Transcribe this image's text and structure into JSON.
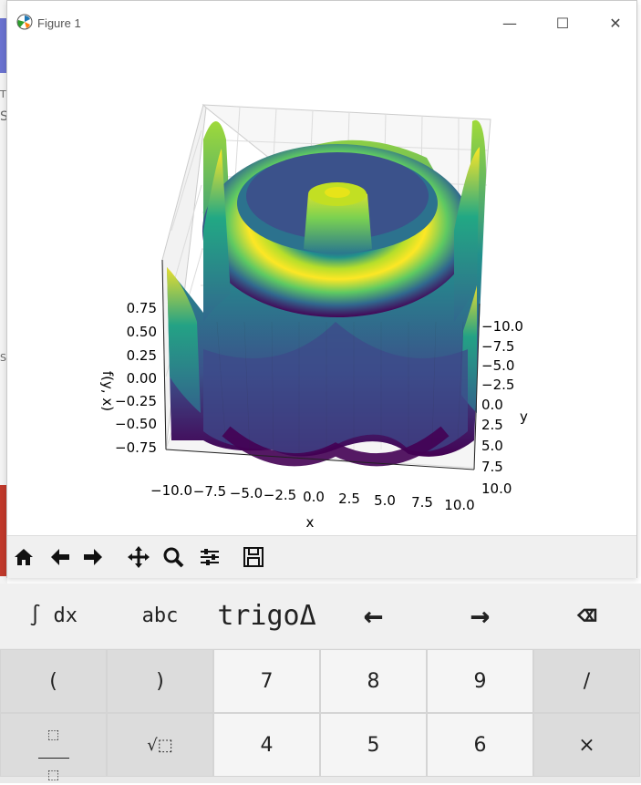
{
  "window": {
    "title": "Figure 1",
    "minimize": "—",
    "maximize": "☐",
    "close": "✕"
  },
  "background_text": {
    "t1": "T",
    "t2": "S",
    "t3": "S"
  },
  "chart_data": {
    "type": "surface",
    "colormap": "viridis",
    "xlabel": "x",
    "ylabel": "y",
    "zlabel": "f(y, x)",
    "x_ticks": [
      "−10.0",
      "−7.5",
      "−5.0",
      "−2.5",
      "0.0",
      "2.5",
      "5.0",
      "7.5",
      "10.0"
    ],
    "y_ticks": [
      "−10.0",
      "−7.5",
      "−5.0",
      "−2.5",
      "0.0",
      "2.5",
      "5.0",
      "7.5",
      "10.0"
    ],
    "z_ticks": [
      "0.75",
      "0.50",
      "0.25",
      "0.00",
      "−0.25",
      "−0.50",
      "−0.75"
    ],
    "xlim": [
      -10,
      10
    ],
    "ylim": [
      -10,
      10
    ],
    "zlim": [
      -0.9,
      0.9
    ]
  },
  "toolbar": {
    "home": "home-icon",
    "back": "back-arrow-icon",
    "forward": "forward-arrow-icon",
    "pan": "pan-icon",
    "zoom": "zoom-icon",
    "configure": "configure-icon",
    "save": "save-icon"
  },
  "keyboard": {
    "top": [
      "∫ dx",
      "abc",
      "trigoΔ",
      "←",
      "→",
      "⌫"
    ],
    "row1": [
      "(",
      ")",
      "7",
      "8",
      "9",
      "/"
    ],
    "row2": [
      "⬚/⬚",
      "√⬚",
      "4",
      "5",
      "6",
      "×"
    ]
  }
}
